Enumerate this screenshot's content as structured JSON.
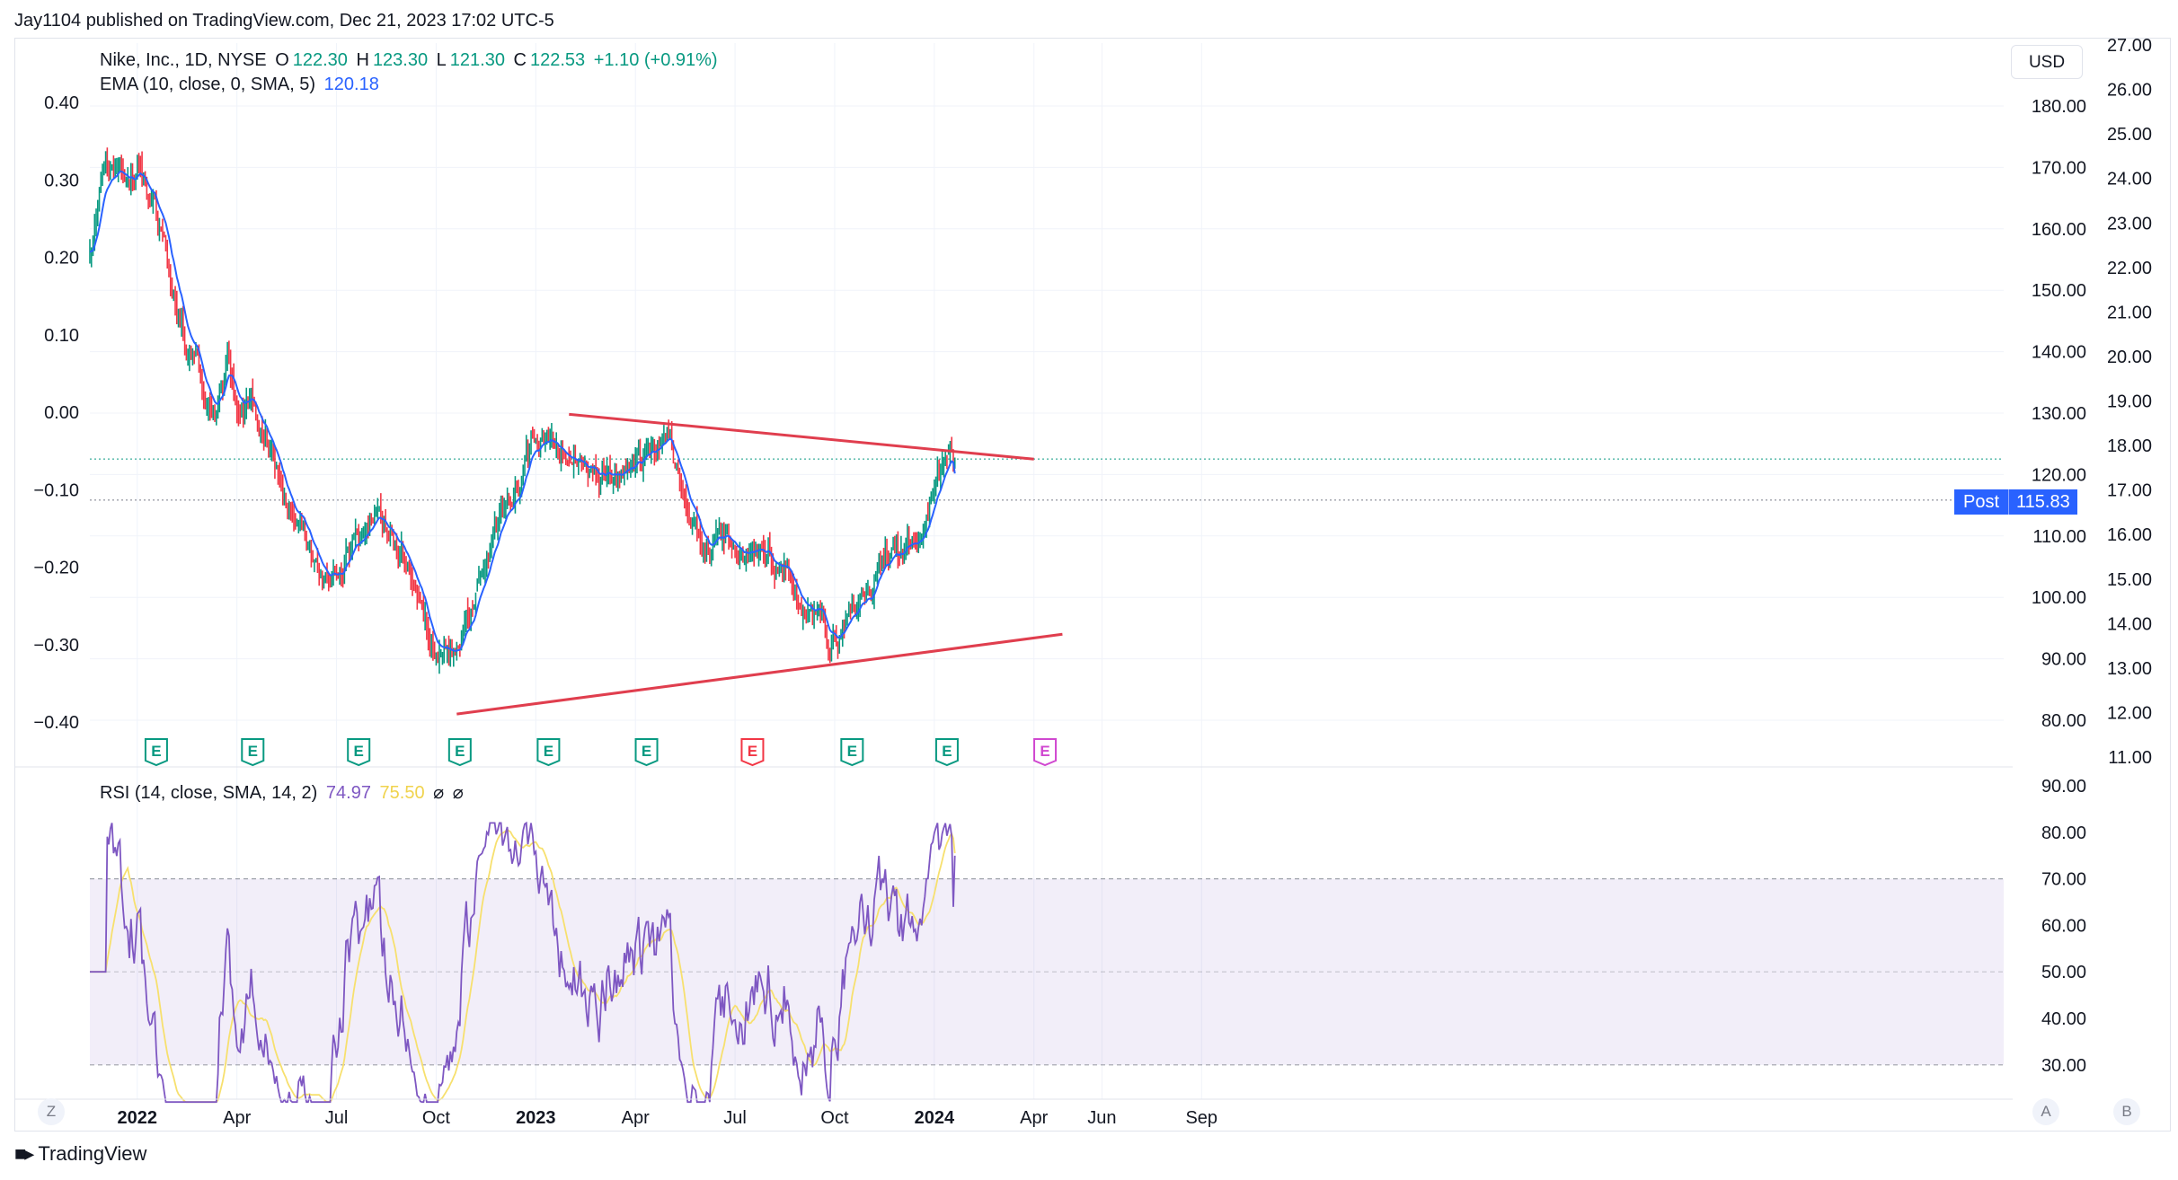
{
  "header": {
    "published_line": "Jay1104 published on TradingView.com, Dec 21, 2023 17:02 UTC-5"
  },
  "legend": {
    "symbol": "Nike, Inc., 1D, NYSE",
    "o_label": "O",
    "o_value": "122.30",
    "h_label": "H",
    "h_value": "123.30",
    "l_label": "L",
    "l_value": "121.30",
    "c_label": "C",
    "c_value": "122.53",
    "change": "+1.10 (+0.91%)",
    "ema_label": "EMA (10, close, 0, SMA, 5)",
    "ema_value": "120.18",
    "rsi_label": "RSI (14, close, SMA, 14, 2)",
    "rsi_value": "74.97",
    "rsi_ma_value": "75.50",
    "hidden_1": "⌀",
    "hidden_2": "⌀"
  },
  "toolbar": {
    "currency": "USD",
    "post_label": "Post",
    "post_value": "115.83",
    "z_button": "Z",
    "a_button": "A",
    "b_button": "B"
  },
  "footer": {
    "logo_text": "TradingView"
  },
  "colors": {
    "up": "#089981",
    "down": "#f23645",
    "ema": "#2962ff",
    "trendline": "#e03e4e",
    "rsi": "#7e57c2",
    "rsi_ma": "#f7e06e",
    "rsi_band": "#7e57c2",
    "earnings_past": "#089981",
    "earnings_miss": "#f23645",
    "earnings_future": "#d048d0",
    "grid": "#f0f3fa"
  },
  "chart_data": [
    {
      "type": "candlestick",
      "title": "Nike, Inc., 1D, NYSE",
      "x_tick_labels": [
        "2022",
        "Apr",
        "Jul",
        "Oct",
        "2023",
        "Apr",
        "Jul",
        "Oct",
        "2024",
        "Apr",
        "Jun",
        "Sep"
      ],
      "x_tick_index": [
        30,
        93,
        156,
        219,
        282,
        345,
        408,
        471,
        534,
        597,
        640,
        703
      ],
      "price_axis_ticks": [
        "180.00",
        "170.00",
        "160.00",
        "150.00",
        "140.00",
        "130.00",
        "120.00",
        "110.00",
        "100.00",
        "90.00",
        "80.00"
      ],
      "price_ylim": [
        77,
        185
      ],
      "left_axis_ticks": [
        "0.40",
        "0.30",
        "0.20",
        "0.10",
        "0.00",
        "−0.10",
        "−0.20",
        "−0.30",
        "−0.40"
      ],
      "far_right_axis_ticks": [
        "27.00",
        "26.00",
        "25.00",
        "24.00",
        "23.00",
        "22.00",
        "21.00",
        "20.00",
        "19.00",
        "18.00",
        "17.00",
        "16.00",
        "15.00",
        "14.00",
        "13.00",
        "12.00",
        "11.00"
      ],
      "close_waypoints": [
        [
          0,
          155
        ],
        [
          8,
          168
        ],
        [
          18,
          172
        ],
        [
          30,
          170
        ],
        [
          40,
          163
        ],
        [
          52,
          150
        ],
        [
          66,
          138
        ],
        [
          80,
          130
        ],
        [
          88,
          140
        ],
        [
          94,
          128
        ],
        [
          102,
          132
        ],
        [
          112,
          126
        ],
        [
          124,
          115
        ],
        [
          136,
          110
        ],
        [
          144,
          102
        ],
        [
          155,
          104
        ],
        [
          168,
          110
        ],
        [
          180,
          113
        ],
        [
          192,
          110
        ],
        [
          203,
          105
        ],
        [
          213,
          96
        ],
        [
          220,
          89
        ],
        [
          228,
          91
        ],
        [
          236,
          93
        ],
        [
          246,
          102
        ],
        [
          256,
          110
        ],
        [
          268,
          118
        ],
        [
          280,
          125
        ],
        [
          292,
          126
        ],
        [
          302,
          123
        ],
        [
          318,
          121
        ],
        [
          332,
          120
        ],
        [
          344,
          122
        ],
        [
          356,
          123
        ],
        [
          366,
          125
        ],
        [
          374,
          118
        ],
        [
          382,
          112
        ],
        [
          392,
          106
        ],
        [
          404,
          110
        ],
        [
          416,
          108
        ],
        [
          428,
          108
        ],
        [
          440,
          105
        ],
        [
          450,
          99
        ],
        [
          460,
          97
        ],
        [
          466,
          93
        ],
        [
          476,
          95
        ],
        [
          484,
          100
        ],
        [
          496,
          103
        ],
        [
          504,
          108
        ],
        [
          512,
          106
        ],
        [
          520,
          110
        ],
        [
          530,
          113
        ],
        [
          540,
          121.3
        ],
        [
          548,
          122.53
        ]
      ],
      "ema": {
        "name": "EMA (10, close, 0, SMA, 5)",
        "last": 120.18
      },
      "last_close": 122.53,
      "post_price": 115.83,
      "trendlines": [
        {
          "from": [
            303,
            129.8
          ],
          "to": [
            597,
            122.5
          ]
        },
        {
          "from": [
            232,
            81
          ],
          "to": [
            615,
            94
          ]
        }
      ],
      "earnings_markers": [
        {
          "index": 42,
          "label": "E",
          "state": "past"
        },
        {
          "index": 103,
          "label": "E",
          "state": "past"
        },
        {
          "index": 170,
          "label": "E",
          "state": "past"
        },
        {
          "index": 234,
          "label": "E",
          "state": "past"
        },
        {
          "index": 290,
          "label": "E",
          "state": "past"
        },
        {
          "index": 352,
          "label": "E",
          "state": "past"
        },
        {
          "index": 419,
          "label": "E",
          "state": "miss"
        },
        {
          "index": 482,
          "label": "E",
          "state": "past"
        },
        {
          "index": 542,
          "label": "E",
          "state": "past"
        },
        {
          "index": 604,
          "label": "E",
          "state": "future"
        }
      ]
    },
    {
      "type": "line",
      "title": "RSI (14, close, SMA, 14, 2)",
      "y_axis_ticks": [
        "90.00",
        "80.00",
        "70.00",
        "60.00",
        "50.00",
        "40.00",
        "30.00"
      ],
      "ylim": [
        25,
        93
      ],
      "band": [
        30,
        70
      ],
      "midline": 50,
      "rsi_last": 74.97,
      "rsi_ma_last": 75.5
    }
  ]
}
